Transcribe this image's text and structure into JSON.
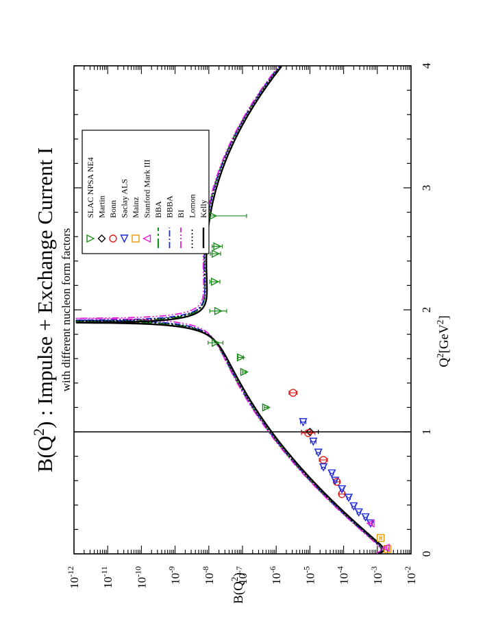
{
  "chart_data": {
    "type": "line",
    "orientation": "rotated-ccw",
    "title": "B(Q2) : Impulse + Exchange Current I",
    "title_prefix": "B(Q",
    "title_sup": "2",
    "title_suffix": ") : Impulse + Exchange Current I",
    "subtitle": "with different nucleon form factors",
    "xlabel_prefix": "Q",
    "xlabel_sup": "2",
    "xlabel_suffix": "[GeV",
    "xlabel_sup2": "2",
    "xlabel_end": "]",
    "ylabel_prefix": "B(Q",
    "ylabel_sup": "2",
    "ylabel_suffix": ")",
    "xlim": [
      0,
      4
    ],
    "ylim_log10": [
      -12,
      -2
    ],
    "y_scale": "log",
    "x_ticks": [
      {
        "value": 0,
        "label": "0"
      },
      {
        "value": 1,
        "label": "1"
      },
      {
        "value": 2,
        "label": "2"
      },
      {
        "value": 3,
        "label": "3"
      },
      {
        "value": 4,
        "label": "4"
      }
    ],
    "y_ticks": [
      {
        "exp": -2,
        "base": "10",
        "sup": "-2"
      },
      {
        "exp": -3,
        "base": "10",
        "sup": "-3"
      },
      {
        "exp": -4,
        "base": "10",
        "sup": "-4"
      },
      {
        "exp": -5,
        "base": "10",
        "sup": "-5"
      },
      {
        "exp": -6,
        "base": "10",
        "sup": "-6"
      },
      {
        "exp": -7,
        "base": "10",
        "sup": "-7"
      },
      {
        "exp": -8,
        "base": "10",
        "sup": "-8"
      },
      {
        "exp": -9,
        "base": "10",
        "sup": "-9"
      },
      {
        "exp": -10,
        "base": "10",
        "sup": "-10"
      },
      {
        "exp": -11,
        "base": "10",
        "sup": "-11"
      },
      {
        "exp": -12,
        "base": "10",
        "sup": "-12"
      }
    ],
    "vertical_line_x": 1.0,
    "legend_position": "upper-right",
    "data_series": [
      {
        "name": "SLAC NPSA NE4",
        "marker": "triangle-up",
        "color": "#1a8c1a",
        "points": [
          {
            "x": 1.2,
            "logy": -6.3,
            "logerr": 0.05
          },
          {
            "x": 1.49,
            "logy": -6.95,
            "logerr": 0.05
          },
          {
            "x": 1.61,
            "logy": -7.05,
            "logerr": 0.08
          },
          {
            "x": 1.73,
            "logy": -7.8,
            "logerr": 0.22
          },
          {
            "x": 1.99,
            "logy": -7.72,
            "logerr": 0.25
          },
          {
            "x": 2.23,
            "logy": -7.82,
            "logerr": 0.15
          },
          {
            "x": 2.46,
            "logy": -7.8,
            "logerr": 0.15
          },
          {
            "x": 2.52,
            "logy": -7.75,
            "logerr": 0.15
          },
          {
            "x": 2.77,
            "logy": -7.88,
            "logerr": 1.0
          }
        ]
      },
      {
        "name": "Martin",
        "marker": "diamond",
        "color": "#000000",
        "points": [
          {
            "x": 1.0,
            "logy": -5.0,
            "logerr": 0.25
          }
        ]
      },
      {
        "name": "Bonn",
        "marker": "circle",
        "color": "#d81e1e",
        "points": [
          {
            "x": 0.49,
            "logy": -4.05,
            "logerr": 0.08
          },
          {
            "x": 0.59,
            "logy": -4.2,
            "logerr": 0.08
          },
          {
            "x": 0.77,
            "logy": -4.6,
            "logerr": 0.12
          },
          {
            "x": 0.99,
            "logy": -5.05,
            "logerr": 0.2
          },
          {
            "x": 1.32,
            "logy": -5.5,
            "logerr": 0.12
          }
        ]
      },
      {
        "name": "Saclay ALS",
        "marker": "triangle-right",
        "color": "#1f2ad8",
        "points": [
          {
            "x": 0.25,
            "logy": -3.2,
            "logerr": 0.05
          },
          {
            "x": 0.3,
            "logy": -3.35,
            "logerr": 0.05
          },
          {
            "x": 0.34,
            "logy": -3.55,
            "logerr": 0.05
          },
          {
            "x": 0.39,
            "logy": -3.7,
            "logerr": 0.05
          },
          {
            "x": 0.46,
            "logy": -3.85,
            "logerr": 0.05
          },
          {
            "x": 0.53,
            "logy": -4.05,
            "logerr": 0.05
          },
          {
            "x": 0.6,
            "logy": -4.25,
            "logerr": 0.05
          },
          {
            "x": 0.66,
            "logy": -4.35,
            "logerr": 0.05
          },
          {
            "x": 0.71,
            "logy": -4.6,
            "logerr": 0.06
          },
          {
            "x": 0.83,
            "logy": -4.75,
            "logerr": 0.06
          },
          {
            "x": 0.92,
            "logy": -4.9,
            "logerr": 0.08
          },
          {
            "x": 1.08,
            "logy": -5.2,
            "logerr": 0.08
          }
        ]
      },
      {
        "name": "Mainz",
        "marker": "square",
        "color": "#e69a00",
        "points": [
          {
            "x": 0.04,
            "logy": -2.7,
            "logerr": 0.03
          },
          {
            "x": 0.13,
            "logy": -2.9,
            "logerr": 0.03
          }
        ]
      },
      {
        "name": "Stanford Mark III",
        "marker": "triangle-down",
        "color": "#e01fd8",
        "points": [
          {
            "x": 0.05,
            "logy": -2.75,
            "logerr": 0.03
          },
          {
            "x": 0.25,
            "logy": -3.2,
            "logerr": 0.03
          }
        ]
      }
    ],
    "curve_series": [
      {
        "name": "BBA",
        "color": "#1a8c1a",
        "dash": "14,4,3,4",
        "width": 2.2,
        "zero": 1.905,
        "scale": 1.0
      },
      {
        "name": "BBBA",
        "color": "#1f2ad8",
        "dash": "9,3,2,3",
        "width": 1.8,
        "zero": 1.915,
        "scale": 1.02
      },
      {
        "name": "BI",
        "color": "#e01fd8",
        "dash": "10,3,2,3,2,3",
        "width": 1.8,
        "zero": 1.93,
        "scale": 0.95
      },
      {
        "name": "Lomon",
        "color": "#000000",
        "dash": "2,3",
        "width": 1.6,
        "zero": 1.91,
        "scale": 1.05
      },
      {
        "name": "Kelly",
        "color": "#000000",
        "dash": "",
        "width": 2.4,
        "zero": 1.895,
        "scale": 1.18
      }
    ]
  }
}
